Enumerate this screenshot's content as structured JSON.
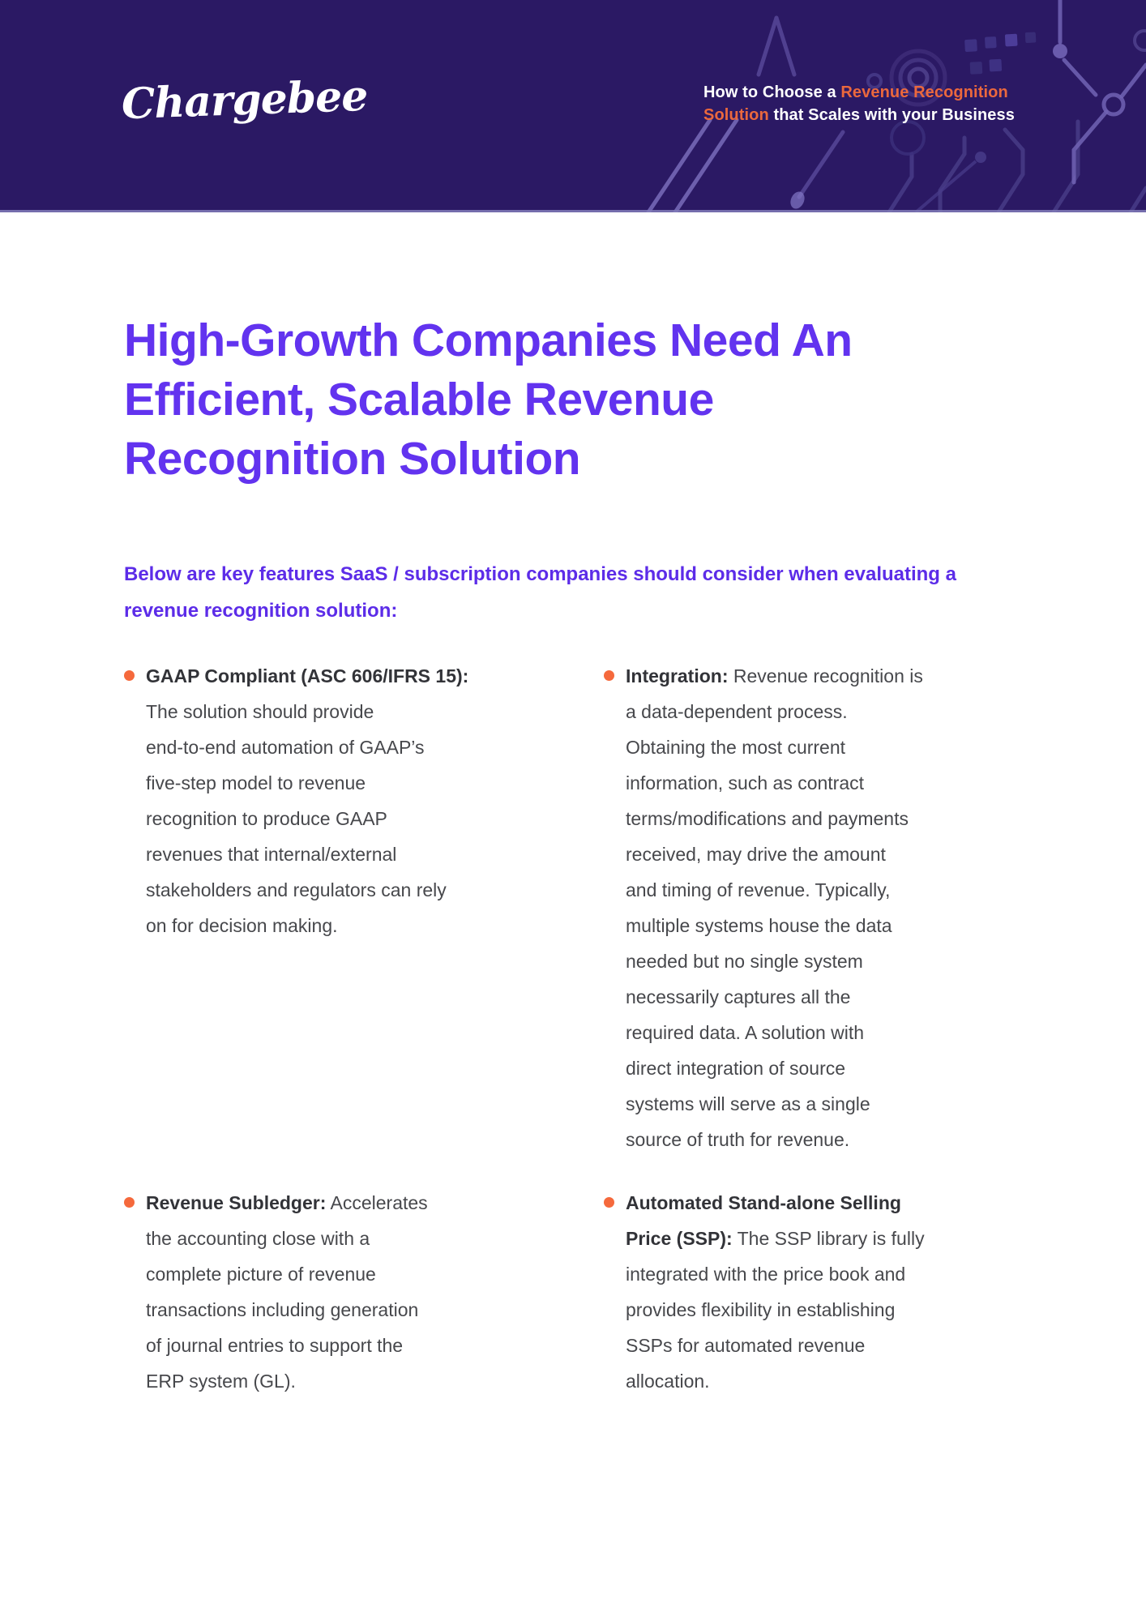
{
  "colors": {
    "header_bg": "#2B1964",
    "accent_orange_text": "#EB683D",
    "bullet_orange": "#F5693C",
    "heading_purple": "#6233EF",
    "intro_purple": "#5C2CE8",
    "bullet_title_ink": "#323338",
    "body_ink": "#47484C",
    "page_bg": "#ffffff"
  },
  "header": {
    "logo_text": "Chargebee",
    "tagline": {
      "line1_white": "How to Choose a ",
      "line1_orange": "Revenue Recognition",
      "line2_orange": "Solution",
      "line2_white": " that Scales with your Business"
    }
  },
  "main": {
    "title_lines": [
      "High-Growth Companies Need An",
      "Efficient, Scalable Revenue",
      "Recognition Solution"
    ],
    "intro_lines": [
      "Below are key features SaaS / subscription companies should consider when evaluating a",
      "revenue recognition solution:"
    ],
    "bullets": [
      {
        "id": "gaap-compliant",
        "lines": [
          [
            {
              "t": "GAAP Compliant (ASC 606/IFRS 15):",
              "bold": true
            }
          ],
          [
            {
              "t": "The solution should provide"
            }
          ],
          [
            {
              "t": "end-to-end automation of GAAP’s"
            }
          ],
          [
            {
              "t": "five-step model to revenue"
            }
          ],
          [
            {
              "t": "recognition to produce GAAP"
            }
          ],
          [
            {
              "t": "revenues that internal/external"
            }
          ],
          [
            {
              "t": "stakeholders and regulators can rely"
            }
          ],
          [
            {
              "t": "on for decision making."
            }
          ]
        ]
      },
      {
        "id": "integration",
        "lines": [
          [
            {
              "t": "Integration:",
              "bold": true
            },
            {
              "t": " Revenue recognition is"
            }
          ],
          [
            {
              "t": "a data-dependent process."
            }
          ],
          [
            {
              "t": "Obtaining the most current"
            }
          ],
          [
            {
              "t": "information, such as contract"
            }
          ],
          [
            {
              "t": "terms/modifications and payments"
            }
          ],
          [
            {
              "t": "received, may drive the amount"
            }
          ],
          [
            {
              "t": "and timing of revenue. Typically,"
            }
          ],
          [
            {
              "t": "multiple systems house the data"
            }
          ],
          [
            {
              "t": "needed but no single system"
            }
          ],
          [
            {
              "t": "necessarily captures all the"
            }
          ],
          [
            {
              "t": "required data. A solution with"
            }
          ],
          [
            {
              "t": "direct integration of source"
            }
          ],
          [
            {
              "t": "systems will serve as a single"
            }
          ],
          [
            {
              "t": "source of truth for revenue."
            }
          ]
        ]
      },
      {
        "id": "revenue-subledger",
        "lines": [
          [
            {
              "t": "Revenue Subledger:",
              "bold": true
            },
            {
              "t": " Accelerates"
            }
          ],
          [
            {
              "t": "the accounting close with a"
            }
          ],
          [
            {
              "t": "complete picture of revenue"
            }
          ],
          [
            {
              "t": "transactions including generation"
            }
          ],
          [
            {
              "t": "of journal entries to support the"
            }
          ],
          [
            {
              "t": "ERP system (GL)."
            }
          ]
        ]
      },
      {
        "id": "automated-ssp",
        "lines": [
          [
            {
              "t": "Automated Stand-alone Selling",
              "bold": true
            }
          ],
          [
            {
              "t": "Price (SSP):",
              "bold": true
            },
            {
              "t": " The SSP library is fully"
            }
          ],
          [
            {
              "t": "integrated with the price book and"
            }
          ],
          [
            {
              "t": "provides flexibility in establishing"
            }
          ],
          [
            {
              "t": "SSPs for automated revenue"
            }
          ],
          [
            {
              "t": "allocation."
            }
          ]
        ]
      }
    ]
  }
}
